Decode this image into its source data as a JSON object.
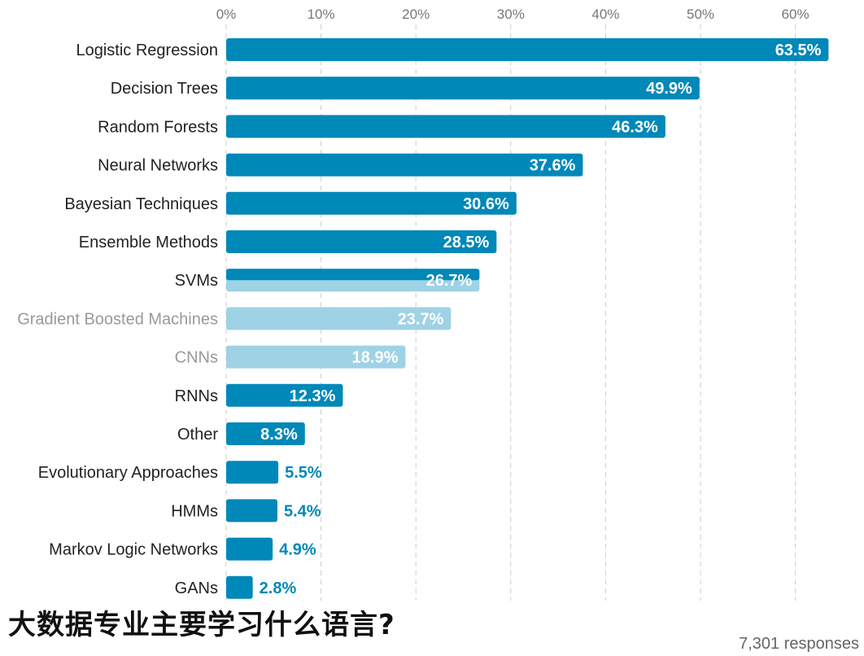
{
  "chart_data": {
    "type": "bar",
    "orientation": "horizontal",
    "categories": [
      "Logistic Regression",
      "Decision Trees",
      "Random Forests",
      "Neural Networks",
      "Bayesian Techniques",
      "Ensemble Methods",
      "SVMs",
      "Gradient Boosted Machines",
      "CNNs",
      "RNNs",
      "Other",
      "Evolutionary Approaches",
      "HMMs",
      "Markov Logic Networks",
      "GANs"
    ],
    "values": [
      63.5,
      49.9,
      46.3,
      37.6,
      30.6,
      28.5,
      26.7,
      23.7,
      18.9,
      12.3,
      8.3,
      5.5,
      5.4,
      4.9,
      2.8
    ],
    "value_labels": [
      "63.5%",
      "49.9%",
      "46.3%",
      "37.6%",
      "30.6%",
      "28.5%",
      "26.7%",
      "23.7%",
      "18.9%",
      "12.3%",
      "8.3%",
      "5.5%",
      "5.4%",
      "4.9%",
      "2.8%"
    ],
    "xticks": [
      "0%",
      "10%",
      "20%",
      "30%",
      "40%",
      "50%",
      "60%"
    ],
    "xtick_values": [
      0,
      10,
      20,
      30,
      40,
      50,
      60
    ],
    "xlim": [
      0,
      63.5
    ],
    "grid": "vertical dashed",
    "bar_color": "#0088b9",
    "faded_bar_color": "#9fd2e5"
  },
  "overlay_title": "大数据专业主要学习什么语言?",
  "footer": "7,301 responses"
}
